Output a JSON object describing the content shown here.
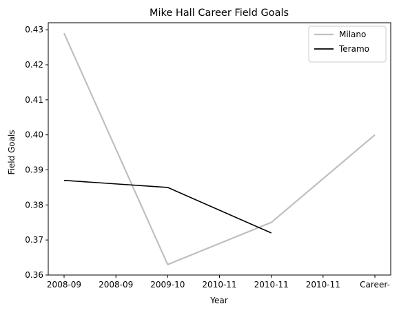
{
  "chart_data": {
    "type": "line",
    "title": "Mike Hall  Career Field Goals",
    "xlabel": "Year",
    "ylabel": "Field Goals",
    "categories": [
      "2008-09",
      "2008-09",
      "2009-10",
      "2010-11",
      "2010-11",
      "2010-11",
      "Career-"
    ],
    "yticks": [
      "0.36",
      "0.37",
      "0.38",
      "0.39",
      "0.40",
      "0.41",
      "0.42",
      "0.43"
    ],
    "ylim": [
      0.36,
      0.432
    ],
    "grid": false,
    "legend_position": "top-right",
    "series": [
      {
        "name": "Milano",
        "color": "#bfbfbf",
        "points": [
          {
            "index": 0,
            "value": 0.429
          },
          {
            "index": 2,
            "value": 0.363
          },
          {
            "index": 4,
            "value": 0.375
          },
          {
            "index": 6,
            "value": 0.4
          }
        ]
      },
      {
        "name": "Teramo",
        "color": "#000000",
        "points": [
          {
            "index": 0,
            "value": 0.387
          },
          {
            "index": 2,
            "value": 0.385
          },
          {
            "index": 4,
            "value": 0.372
          }
        ]
      }
    ]
  }
}
